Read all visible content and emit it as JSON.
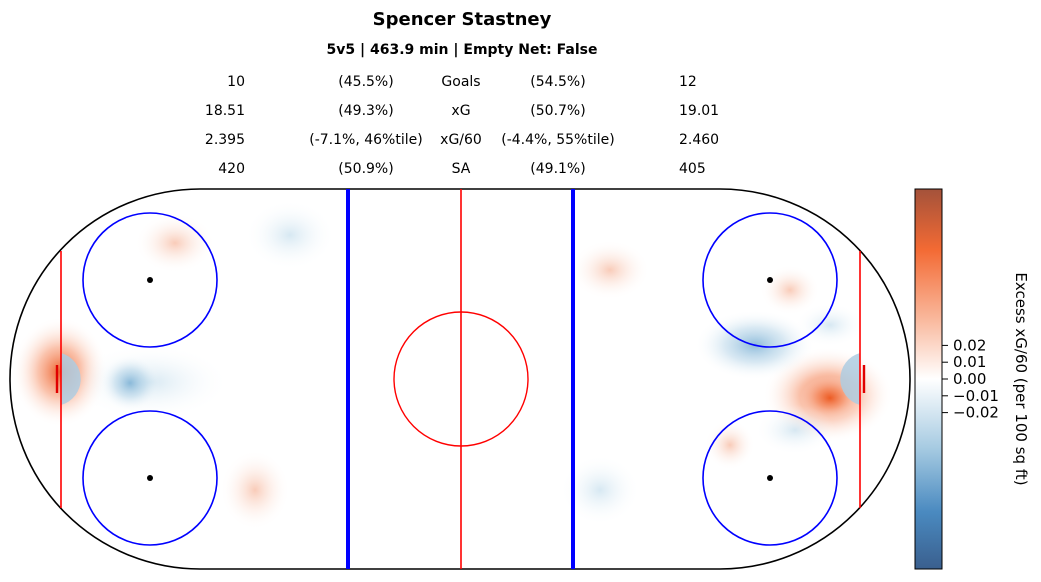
{
  "title": "Spencer Stastney",
  "subtitle": "5v5 | 463.9 min | Empty Net: False",
  "stats": [
    {
      "left": "10",
      "left_pct": "(45.5%)",
      "label": "Goals",
      "right_pct": "(54.5%)",
      "right": "12"
    },
    {
      "left": "18.51",
      "left_pct": "(49.3%)",
      "label": "xG",
      "right_pct": "(50.7%)",
      "right": "19.01"
    },
    {
      "left": "2.395",
      "left_pct": "(-7.1%, 46%tile)",
      "label": "xG/60",
      "right_pct": "(-4.4%, 55%tile)",
      "right": "2.460"
    },
    {
      "left": "420",
      "left_pct": "(50.9%)",
      "label": "SA",
      "right_pct": "(49.1%)",
      "right": "405"
    }
  ],
  "colors": {
    "rink_outline": "#000000",
    "center_line": "#ff0000",
    "goal_line": "#ff0000",
    "blue_line": "#0000ff",
    "faceoff_circle": "#0000ff",
    "center_circle": "#ff0000",
    "positive": "#e8622f",
    "negative": "#5b9bc8"
  },
  "chart_data": {
    "type": "heatmap",
    "title": "Spencer Stastney",
    "subtitle": "5v5 | 463.9 min | Empty Net: False",
    "colorbar": {
      "label": "Excess xG/60 (per 100 sq ft)",
      "ticks": [
        0.02,
        0.01,
        0.0,
        -0.01,
        -0.02
      ],
      "tick_labels": [
        "0.02",
        "0.01",
        "0.00",
        "−0.01",
        "−0.02"
      ],
      "range": [
        -0.05,
        0.05
      ],
      "colormap": "diverging blue-white-orange"
    },
    "hotspots": [
      {
        "zone": "left crease",
        "sign": "positive",
        "intensity": 0.6
      },
      {
        "zone": "left slot",
        "sign": "negative",
        "intensity": 0.4
      },
      {
        "zone": "left top circle",
        "sign": "positive",
        "intensity": 0.2
      },
      {
        "zone": "right crease front",
        "sign": "positive",
        "intensity": 0.9
      },
      {
        "zone": "right slot",
        "sign": "negative",
        "intensity": 0.45
      },
      {
        "zone": "right top circle",
        "sign": "positive",
        "intensity": 0.3
      },
      {
        "zone": "right bottom circle",
        "sign": "positive",
        "intensity": 0.3
      }
    ]
  }
}
